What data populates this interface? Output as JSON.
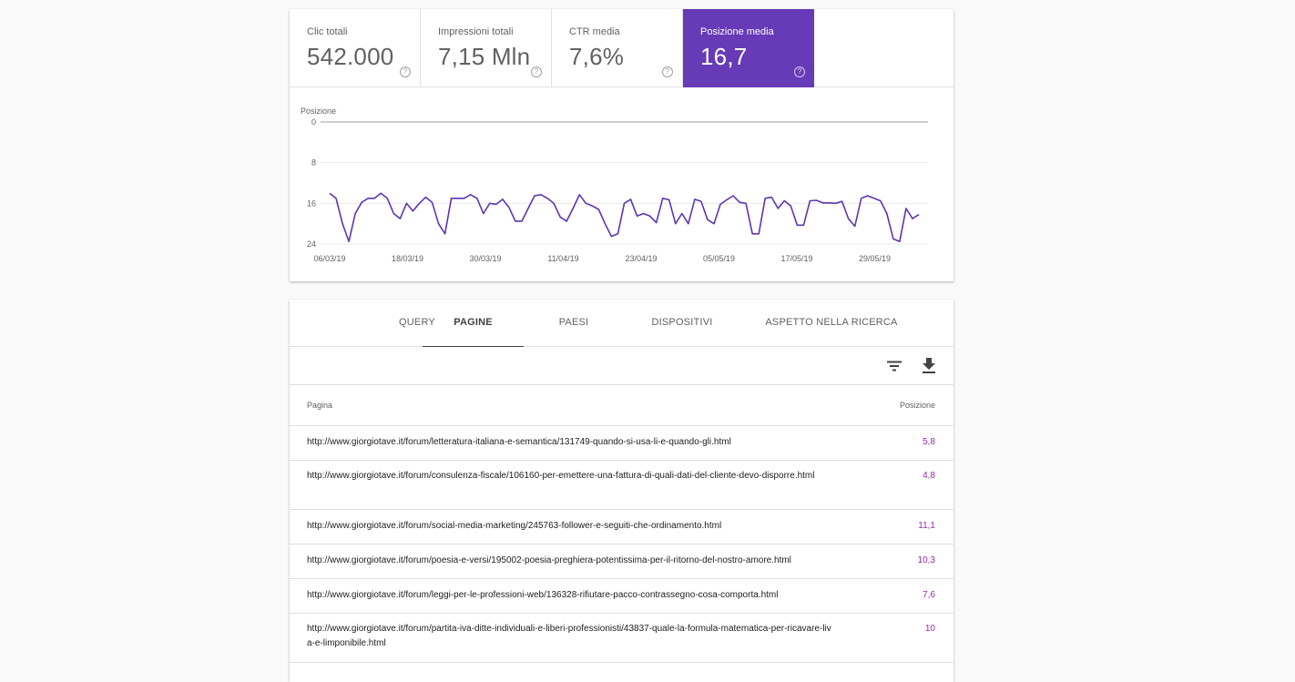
{
  "metrics": [
    {
      "label": "Clic totali",
      "value": "542.000",
      "help": "?",
      "active": false
    },
    {
      "label": "Impressioni totali",
      "value": "7,15 Mln",
      "help": "?",
      "active": false
    },
    {
      "label": "CTR media",
      "value": "7,6%",
      "help": "?",
      "active": false
    },
    {
      "label": "Posizione media",
      "value": "16,7",
      "help": "?",
      "active": true
    }
  ],
  "colors": {
    "accent": "#673ab7",
    "line": "#5e35b1",
    "position_value": "#9c27b0"
  },
  "chart_data": {
    "type": "line",
    "ylabel": "Posizione",
    "yticks": [
      0,
      8,
      16,
      24
    ],
    "ylim": [
      0,
      24
    ],
    "y_inverted": false,
    "grid": true,
    "xticks": [
      "06/03/19",
      "18/03/19",
      "30/03/19",
      "11/04/19",
      "23/04/19",
      "05/05/19",
      "17/05/19",
      "29/05/19"
    ],
    "series": [
      {
        "values": [
          14,
          15,
          20,
          23.5,
          18,
          15.8,
          15,
          15,
          14,
          15,
          18,
          19,
          16,
          17.5,
          16,
          14.8,
          15.8,
          20,
          22,
          15,
          15,
          15,
          14.3,
          15,
          18,
          16,
          16.2,
          15.2,
          16.8,
          19.5,
          19.5,
          17,
          14.5,
          14.3,
          15,
          16,
          18.7,
          19.5,
          17,
          14.3,
          16,
          16.5,
          17.2,
          20,
          22.5,
          22,
          16,
          15.2,
          18.5,
          18,
          18.5,
          19.8,
          15,
          15.3,
          20,
          18,
          20,
          15.2,
          15.6,
          19.2,
          20,
          16.2,
          15.3,
          14.5,
          15.8,
          16,
          22,
          22,
          15,
          14.8,
          17,
          15.5,
          16.5,
          20.3,
          20.3,
          15.5,
          15.4,
          15.9,
          15.9,
          16,
          15.6,
          19,
          20.5,
          15,
          14.5,
          15,
          15.5,
          18,
          23,
          23.5,
          17,
          19,
          18.2
        ]
      }
    ]
  },
  "tabs": [
    {
      "label": "QUERY",
      "active": false
    },
    {
      "label": "PAGINE",
      "active": true
    },
    {
      "label": "PAESI",
      "active": false
    },
    {
      "label": "DISPOSITIVI",
      "active": false
    },
    {
      "label": "ASPETTO NELLA RICERCA",
      "active": false
    }
  ],
  "toolbar": {
    "filter_icon": "filter-list-icon",
    "download_icon": "download-icon"
  },
  "table": {
    "headers": {
      "page": "Pagina",
      "position": "Posizione"
    },
    "rows": [
      {
        "url": "http://www.giorgiotave.it/forum/letteratura-italiana-e-semantica/131749-quando-si-usa-li-e-quando-gli.html",
        "position": "5,8"
      },
      {
        "url": "http://www.giorgiotave.it/forum/consulenza-fiscale/106160-per-emettere-una-fattura-di-quali-dati-del-cliente-devo-disporre.html",
        "position": "4,8"
      },
      {
        "url": "http://www.giorgiotave.it/forum/social-media-marketing/245763-follower-e-seguiti-che-ordinamento.html",
        "position": "11,1"
      },
      {
        "url": "http://www.giorgiotave.it/forum/poesia-e-versi/195002-poesia-preghiera-potentissima-per-il-ritorno-del-nostro-amore.html",
        "position": "10,3"
      },
      {
        "url": "http://www.giorgiotave.it/forum/leggi-per-le-professioni-web/136328-rifiutare-pacco-contrassegno-cosa-comporta.html",
        "position": "7,6"
      },
      {
        "url": "http://www.giorgiotave.it/forum/partita-iva-ditte-individuali-e-liberi-professionisti/43837-quale-la-formula-matematica-per-ricavare-liva-e-limponibile.html",
        "position": "10"
      }
    ]
  }
}
